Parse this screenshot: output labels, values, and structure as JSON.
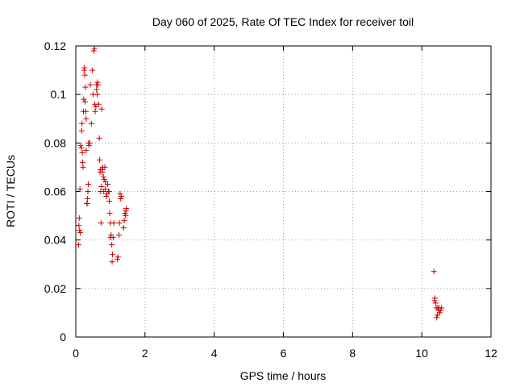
{
  "chart_data": {
    "type": "scatter",
    "title": "Day 060 of 2025, Rate Of TEC Index for receiver toil",
    "xlabel": "GPS time / hours",
    "ylabel": "ROTI / TECUs",
    "xlim": [
      0,
      12
    ],
    "ylim": [
      0,
      0.12
    ],
    "xticks": [
      0,
      2,
      4,
      6,
      8,
      10,
      12
    ],
    "xtick_labels": [
      "0",
      "2",
      "4",
      "6",
      "8",
      "10",
      "12"
    ],
    "yticks": [
      0,
      0.02,
      0.04,
      0.06,
      0.08,
      0.1,
      0.12
    ],
    "ytick_labels": [
      "0",
      "0.02",
      "0.04",
      "0.06",
      "0.08",
      "0.1",
      "0.12"
    ],
    "grid": true,
    "marker": "+",
    "color": "#cc0000",
    "series": [
      {
        "name": "ROTI",
        "x": [
          0.08,
          0.09,
          0.1,
          0.11,
          0.12,
          0.13,
          0.14,
          0.16,
          0.17,
          0.18,
          0.19,
          0.2,
          0.21,
          0.22,
          0.23,
          0.24,
          0.25,
          0.26,
          0.27,
          0.28,
          0.29,
          0.3,
          0.3,
          0.32,
          0.33,
          0.34,
          0.35,
          0.36,
          0.37,
          0.38,
          0.4,
          0.42,
          0.45,
          0.48,
          0.5,
          0.52,
          0.54,
          0.55,
          0.56,
          0.58,
          0.6,
          0.6,
          0.62,
          0.63,
          0.64,
          0.66,
          0.68,
          0.69,
          0.7,
          0.71,
          0.72,
          0.73,
          0.74,
          0.75,
          0.76,
          0.77,
          0.78,
          0.8,
          0.8,
          0.82,
          0.84,
          0.85,
          0.86,
          0.88,
          0.9,
          0.92,
          0.94,
          0.96,
          0.97,
          0.98,
          1.0,
          1.0,
          1.02,
          1.04,
          1.05,
          1.06,
          1.08,
          1.1,
          1.2,
          1.22,
          1.25,
          1.26,
          1.28,
          1.3,
          1.32,
          1.38,
          1.4,
          1.42,
          1.44,
          1.45,
          1.46,
          10.35,
          10.37,
          10.38,
          10.4,
          10.42,
          10.43,
          10.45,
          10.46,
          10.48,
          10.5,
          10.52,
          10.55,
          10.57
        ],
        "y": [
          0.038,
          0.046,
          0.049,
          0.044,
          0.061,
          0.043,
          0.079,
          0.078,
          0.085,
          0.088,
          0.076,
          0.072,
          0.07,
          0.093,
          0.098,
          0.11,
          0.111,
          0.108,
          0.097,
          0.103,
          0.093,
          0.09,
          0.077,
          0.055,
          0.055,
          0.057,
          0.06,
          0.063,
          0.08,
          0.079,
          0.08,
          0.104,
          0.088,
          0.11,
          0.1,
          0.118,
          0.119,
          0.096,
          0.093,
          0.095,
          0.104,
          0.102,
          0.1,
          0.105,
          0.104,
          0.096,
          0.082,
          0.073,
          0.068,
          0.069,
          0.06,
          0.047,
          0.062,
          0.094,
          0.069,
          0.068,
          0.07,
          0.06,
          0.066,
          0.065,
          0.07,
          0.061,
          0.064,
          0.058,
          0.059,
          0.063,
          0.06,
          0.06,
          0.056,
          0.051,
          0.047,
          0.041,
          0.042,
          0.038,
          0.031,
          0.034,
          0.041,
          0.047,
          0.032,
          0.033,
          0.042,
          0.047,
          0.059,
          0.057,
          0.058,
          0.045,
          0.048,
          0.051,
          0.05,
          0.052,
          0.053,
          0.027,
          0.015,
          0.016,
          0.014,
          0.012,
          0.008,
          0.009,
          0.012,
          0.011,
          0.012,
          0.01,
          0.011,
          0.012
        ]
      }
    ]
  }
}
